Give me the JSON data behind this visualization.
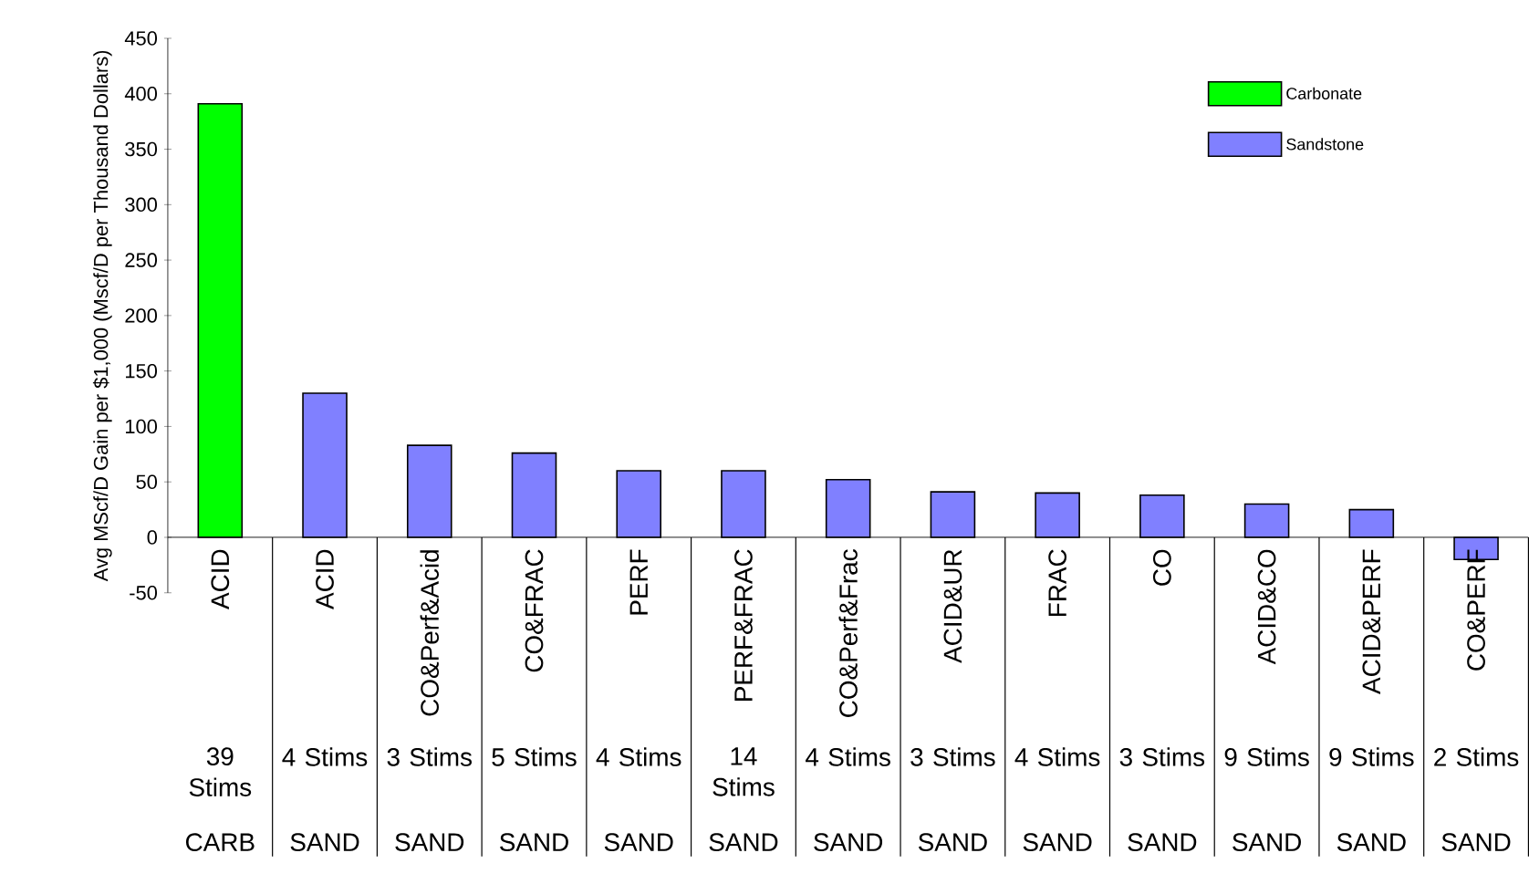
{
  "chart_data": {
    "type": "bar",
    "ylabel": "Avg MScf/D Gain per $1,000 (Mscf/D per Thousand Dollars)",
    "categories": [
      "ACID",
      "ACID",
      "CO&Perf&Acid",
      "CO&FRAC",
      "PERF",
      "PERF&FRAC",
      "CO&Perf&Frac",
      "ACID&UR",
      "FRAC",
      "CO",
      "ACID&CO",
      "ACID&PERF",
      "CO&PERF"
    ],
    "series": [
      {
        "name": "Carbonate",
        "color": "#00ff00",
        "values": [
          391,
          null,
          null,
          null,
          null,
          null,
          null,
          null,
          null,
          null,
          null,
          null,
          null
        ]
      },
      {
        "name": "Sandstone",
        "color": "#8080ff",
        "values": [
          null,
          130,
          83,
          76,
          60,
          60,
          52,
          41,
          40,
          38,
          30,
          25,
          -20
        ]
      }
    ],
    "ylim": [
      -50,
      450
    ],
    "yticks": [
      -50,
      0,
      50,
      100,
      150,
      200,
      250,
      300,
      350,
      400,
      450
    ],
    "legend": "top right",
    "annotations": [
      "39 Stims",
      "4 Stims",
      "3 Stims",
      "5 Stims",
      "4 Stims",
      "14 Stims",
      "4 Stims",
      "3 Stims",
      "4 Stims",
      "3 Stims",
      "9 Stims",
      "9 Stims",
      "2 Stims",
      "CARB",
      "SAND",
      "SAND",
      "SAND",
      "SAND",
      "SAND",
      "SAND",
      "SAND",
      "SAND",
      "SAND",
      "SAND",
      "SAND",
      "SAND"
    ]
  }
}
